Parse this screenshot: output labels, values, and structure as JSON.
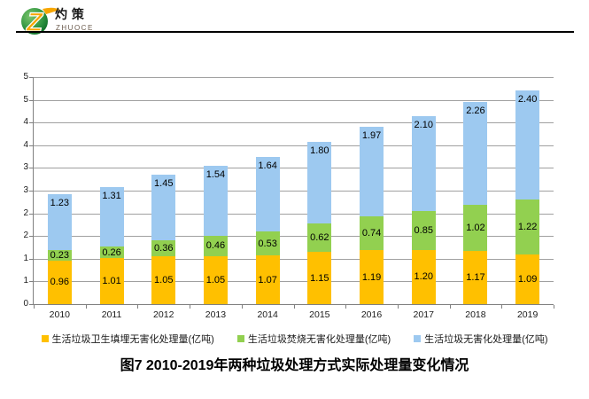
{
  "logo": {
    "name_cn": "灼 策",
    "name_en": "ZHUOCE"
  },
  "chart_data": {
    "type": "bar",
    "stacked": true,
    "title": "图7  2010-2019年两种垃圾处理方式实际处理量变化情况",
    "categories": [
      "2010",
      "2011",
      "2012",
      "2013",
      "2014",
      "2015",
      "2016",
      "2017",
      "2018",
      "2019"
    ],
    "series": [
      {
        "name": "生活垃圾卫生填埋无害化处理量(亿吨)",
        "color": "#FFC000",
        "values": [
          0.96,
          1.01,
          1.05,
          1.05,
          1.07,
          1.15,
          1.19,
          1.2,
          1.17,
          1.09
        ]
      },
      {
        "name": "生活垃圾焚烧无害化处理量(亿吨)",
        "color": "#92D050",
        "values": [
          0.23,
          0.26,
          0.36,
          0.46,
          0.53,
          0.62,
          0.74,
          0.85,
          1.02,
          1.22
        ]
      },
      {
        "name": "生活垃圾无害化处理量(亿吨)",
        "color": "#9DC9F0",
        "values": [
          1.23,
          1.31,
          1.45,
          1.54,
          1.64,
          1.8,
          1.97,
          2.1,
          2.26,
          2.4
        ]
      }
    ],
    "ylim": [
      0,
      5
    ],
    "y_tick_step": 0.5,
    "y_tick_labels": [
      "0",
      "1",
      "1",
      "2",
      "2",
      "3",
      "3",
      "4",
      "4",
      "5",
      "5"
    ],
    "grid": true,
    "legend_position": "bottom",
    "data_label_decimals": 2
  }
}
